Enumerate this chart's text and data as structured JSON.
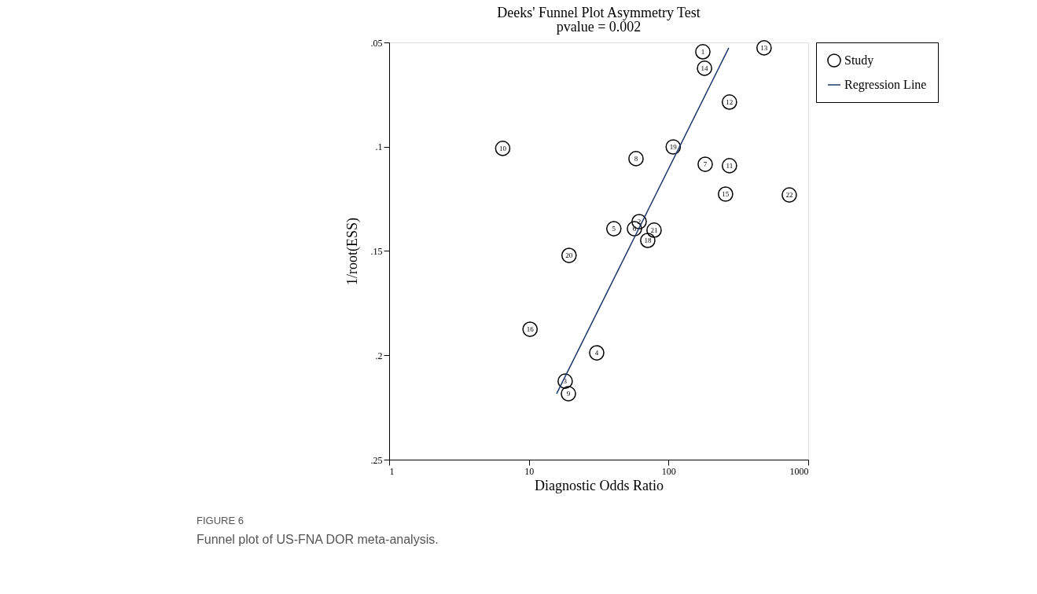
{
  "chart_data": {
    "type": "scatter",
    "title": "Deeks' Funnel Plot Asymmetry Test",
    "subtitle": "pvalue =  0.002",
    "xlabel": "Diagnostic Odds Ratio",
    "ylabel": "1/root(ESS)",
    "log": "x",
    "xlim": [
      1,
      1000
    ],
    "xticks": [
      1,
      10,
      100,
      1000
    ],
    "ylim": [
      0.25,
      0.05
    ],
    "yticks": [
      {
        "value": 0.05,
        "label": ".05"
      },
      {
        "value": 0.1,
        "label": ".1"
      },
      {
        "value": 0.15,
        "label": ".15"
      },
      {
        "value": 0.2,
        "label": ".2"
      },
      {
        "value": 0.25,
        "label": ".25"
      }
    ],
    "grid": false,
    "legend": "top right",
    "series": [
      {
        "name": "Study",
        "type": "scatter",
        "marker": "circle",
        "color": "#000000",
        "x": [
          176,
          483,
          181,
          273,
          6.5,
          108,
          58.5,
          183,
          273,
          256,
          732,
          61.6,
          40.6,
          57,
          78.8,
          71,
          19.4,
          10.2,
          30.6,
          18.2,
          19.2
        ],
        "values": [
          0.0545,
          0.0526,
          0.0624,
          0.0786,
          0.1008,
          0.1001,
          0.1057,
          0.1084,
          0.1091,
          0.1227,
          0.1231,
          0.1359,
          0.1393,
          0.1393,
          0.14,
          0.1449,
          0.1521,
          0.1875,
          0.1988,
          0.2124,
          0.2184
        ]
      },
      {
        "name": "Regression Line",
        "type": "line",
        "line_style": "solid",
        "color": "#1f3a6e",
        "x": [
          15.8,
          270
        ],
        "values": [
          0.2184,
          0.0526
        ]
      }
    ],
    "annotations": [
      {
        "text": "1",
        "x": 176,
        "y": 0.0545
      },
      {
        "text": "13",
        "x": 483,
        "y": 0.0526
      },
      {
        "text": "14",
        "x": 181,
        "y": 0.0624
      },
      {
        "text": "12",
        "x": 273,
        "y": 0.0786
      },
      {
        "text": "10",
        "x": 6.5,
        "y": 0.1008
      },
      {
        "text": "19",
        "x": 108,
        "y": 0.1001
      },
      {
        "text": "8",
        "x": 58.5,
        "y": 0.1057
      },
      {
        "text": "7",
        "x": 183,
        "y": 0.1084
      },
      {
        "text": "11",
        "x": 273,
        "y": 0.1091
      },
      {
        "text": "15",
        "x": 256,
        "y": 0.1227
      },
      {
        "text": "22",
        "x": 732,
        "y": 0.1231
      },
      {
        "text": "2",
        "x": 61.6,
        "y": 0.1359
      },
      {
        "text": "5",
        "x": 40.6,
        "y": 0.1393
      },
      {
        "text": "6",
        "x": 57,
        "y": 0.1393
      },
      {
        "text": "21",
        "x": 78.8,
        "y": 0.14
      },
      {
        "text": "18",
        "x": 71,
        "y": 0.1449
      },
      {
        "text": "20",
        "x": 19.4,
        "y": 0.1521
      },
      {
        "text": "16",
        "x": 10.2,
        "y": 0.1875
      },
      {
        "text": "4",
        "x": 30.6,
        "y": 0.1988
      },
      {
        "text": "3",
        "x": 18.2,
        "y": 0.2124
      },
      {
        "text": "9",
        "x": 19.2,
        "y": 0.2184
      },
      "FIGURE 6",
      "Funnel plot of US-FNA DOR meta-analysis."
    ]
  }
}
